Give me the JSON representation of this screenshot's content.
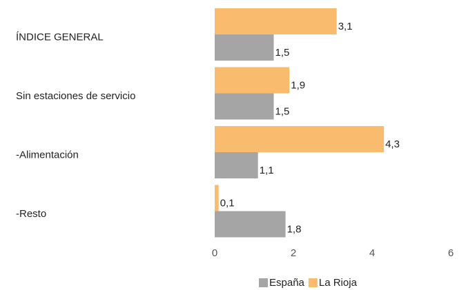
{
  "chart_data": {
    "type": "bar",
    "orientation": "horizontal",
    "categories": [
      "ÍNDICE GENERAL",
      "Sin estaciones de servicio",
      "-Alimentación",
      "-Resto"
    ],
    "series": [
      {
        "name": "España",
        "color": "#a5a5a5",
        "values": [
          1.5,
          1.5,
          1.1,
          1.8
        ],
        "value_labels": [
          "1,5",
          "1,5",
          "1,1",
          "1,8"
        ]
      },
      {
        "name": "La Rioja",
        "color": "#f9bc6e",
        "values": [
          3.1,
          1.9,
          4.3,
          0.1
        ],
        "value_labels": [
          "3,1",
          "1,9",
          "4,3",
          "0,1"
        ]
      }
    ],
    "xlim": [
      0,
      6
    ],
    "xticks": [
      0,
      2,
      4,
      6
    ],
    "grid": false,
    "legend": "bottom"
  }
}
